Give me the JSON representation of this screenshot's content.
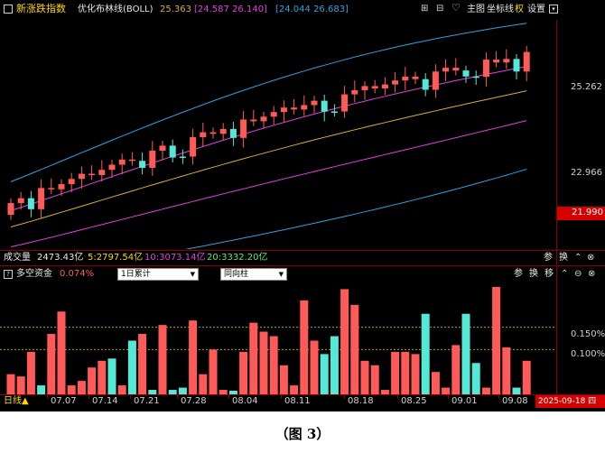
{
  "main_panel": {
    "title": "新涨跌指数",
    "indicator_name": "优化布林线(BOLL)",
    "mid_value": "25.363",
    "upper_value": "[24.587 26.140]",
    "lower_value": "[24.044 26.683]",
    "toolbar": {
      "main_label": "主图",
      "coord_label": "坐标线",
      "right_label": "权",
      "settings_label": "设置"
    },
    "price_labels": {
      "upper": "25.262",
      "middle": "22.966",
      "current": "21.990"
    }
  },
  "volume_bar": {
    "label": "成交量",
    "value": "2473.43亿",
    "ma5": "5:2797.54亿",
    "ma10": "10:3073.14亿",
    "ma20": "20:3332.20亿",
    "icons": [
      "参",
      "换"
    ]
  },
  "sub_panel": {
    "title": "多空资金",
    "value": "0.074%",
    "dropdown1": "1日累计",
    "dropdown2": "同向柱",
    "icons": [
      "参",
      "换",
      "移"
    ],
    "y_labels": [
      "0.150%",
      "0.100%"
    ]
  },
  "x_axis": {
    "period": "日线▲",
    "dates": [
      "07.07",
      "07.14",
      "07.21",
      "07.28",
      "08.04",
      "08.11",
      "08.18",
      "08.25",
      "09.01",
      "09.08"
    ],
    "current_date": "2025-09-18 四"
  },
  "caption": "（图 3）",
  "colors": {
    "background": "#000000",
    "up": "#ff5a5a",
    "down": "#54e8d6",
    "upper_band": "#2aa3e0",
    "mid_band": "#d7b02c",
    "lower_band": "#e040e0",
    "outer_lower": "#2aa3e0",
    "grid": "#8a0000",
    "title_yellow": "#ffd700",
    "accent_red": "#ff3030"
  },
  "chart_data": [
    {
      "type": "bar",
      "name": "多空资金",
      "unit": "%",
      "reference_lines": [
        0.15,
        0.1
      ],
      "categories_visible": [
        "07.07",
        "07.14",
        "07.21",
        "07.28",
        "08.04",
        "08.11",
        "08.18",
        "08.25",
        "09.01",
        "09.08"
      ],
      "values": [
        0.045,
        0.04,
        0.095,
        0.02,
        0.135,
        0.185,
        0.02,
        0.03,
        0.06,
        0.075,
        0.08,
        0.02,
        0.12,
        0.135,
        0.01,
        0.155,
        0.01,
        0.015,
        0.165,
        0.045,
        0.1,
        0.01,
        0.008,
        0.095,
        0.16,
        0.14,
        0.13,
        0.065,
        0.02,
        0.21,
        0.12,
        0.09,
        0.13,
        0.235,
        0.2,
        0.075,
        0.065,
        0.01,
        0.095,
        0.095,
        0.09,
        0.18,
        0.05,
        0.015,
        0.11,
        0.18,
        0.07,
        0.015,
        0.24,
        0.105,
        0.015,
        0.075
      ],
      "colors": [
        "up",
        "up",
        "up",
        "down",
        "up",
        "up",
        "up",
        "up",
        "up",
        "up",
        "down",
        "up",
        "down",
        "up",
        "down",
        "up",
        "down",
        "down",
        "up",
        "up",
        "up",
        "up",
        "down",
        "up",
        "up",
        "up",
        "up",
        "up",
        "up",
        "up",
        "up",
        "down",
        "down",
        "up",
        "up",
        "up",
        "up",
        "up",
        "up",
        "up",
        "up",
        "down",
        "up",
        "up",
        "up",
        "down",
        "down",
        "up",
        "up",
        "up",
        "down",
        "up"
      ]
    }
  ]
}
